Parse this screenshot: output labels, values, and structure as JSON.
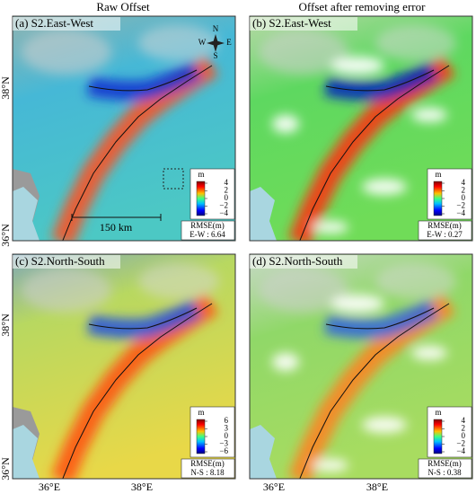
{
  "columns": [
    "Raw Offset",
    "Offset after removing error"
  ],
  "lat_labels": [
    "38°N",
    "36°N"
  ],
  "lon_labels": [
    "36°E",
    "38°E"
  ],
  "panels": [
    {
      "label": "(a) S2.East-West",
      "colorbar": {
        "unit": "m",
        "ticks": [
          "4",
          "2",
          "0",
          "−2",
          "−4"
        ]
      },
      "rmse": {
        "title": "RMSE(m)",
        "value": "E-W : 6.64"
      },
      "scale_bar": "150 km",
      "compass": [
        "N",
        "E",
        "S",
        "W"
      ]
    },
    {
      "label": "(b) S2.East-West",
      "colorbar": {
        "unit": "m",
        "ticks": [
          "4",
          "2",
          "0",
          "−2",
          "−4"
        ]
      },
      "rmse": {
        "title": "RMSE(m)",
        "value": "E-W : 0.27"
      }
    },
    {
      "label": "(c) S2.North-South",
      "colorbar": {
        "unit": "m",
        "ticks": [
          "6",
          "3",
          "0",
          "−3",
          "−6"
        ]
      },
      "rmse": {
        "title": "RMSE(m)",
        "value": "N-S : 8.18"
      }
    },
    {
      "label": "(d) S2.North-South",
      "colorbar": {
        "unit": "m",
        "ticks": [
          "4",
          "2",
          "0",
          "−2",
          "−4"
        ]
      },
      "rmse": {
        "title": "RMSE(m)",
        "value": "N-S : 0.38"
      }
    }
  ]
}
